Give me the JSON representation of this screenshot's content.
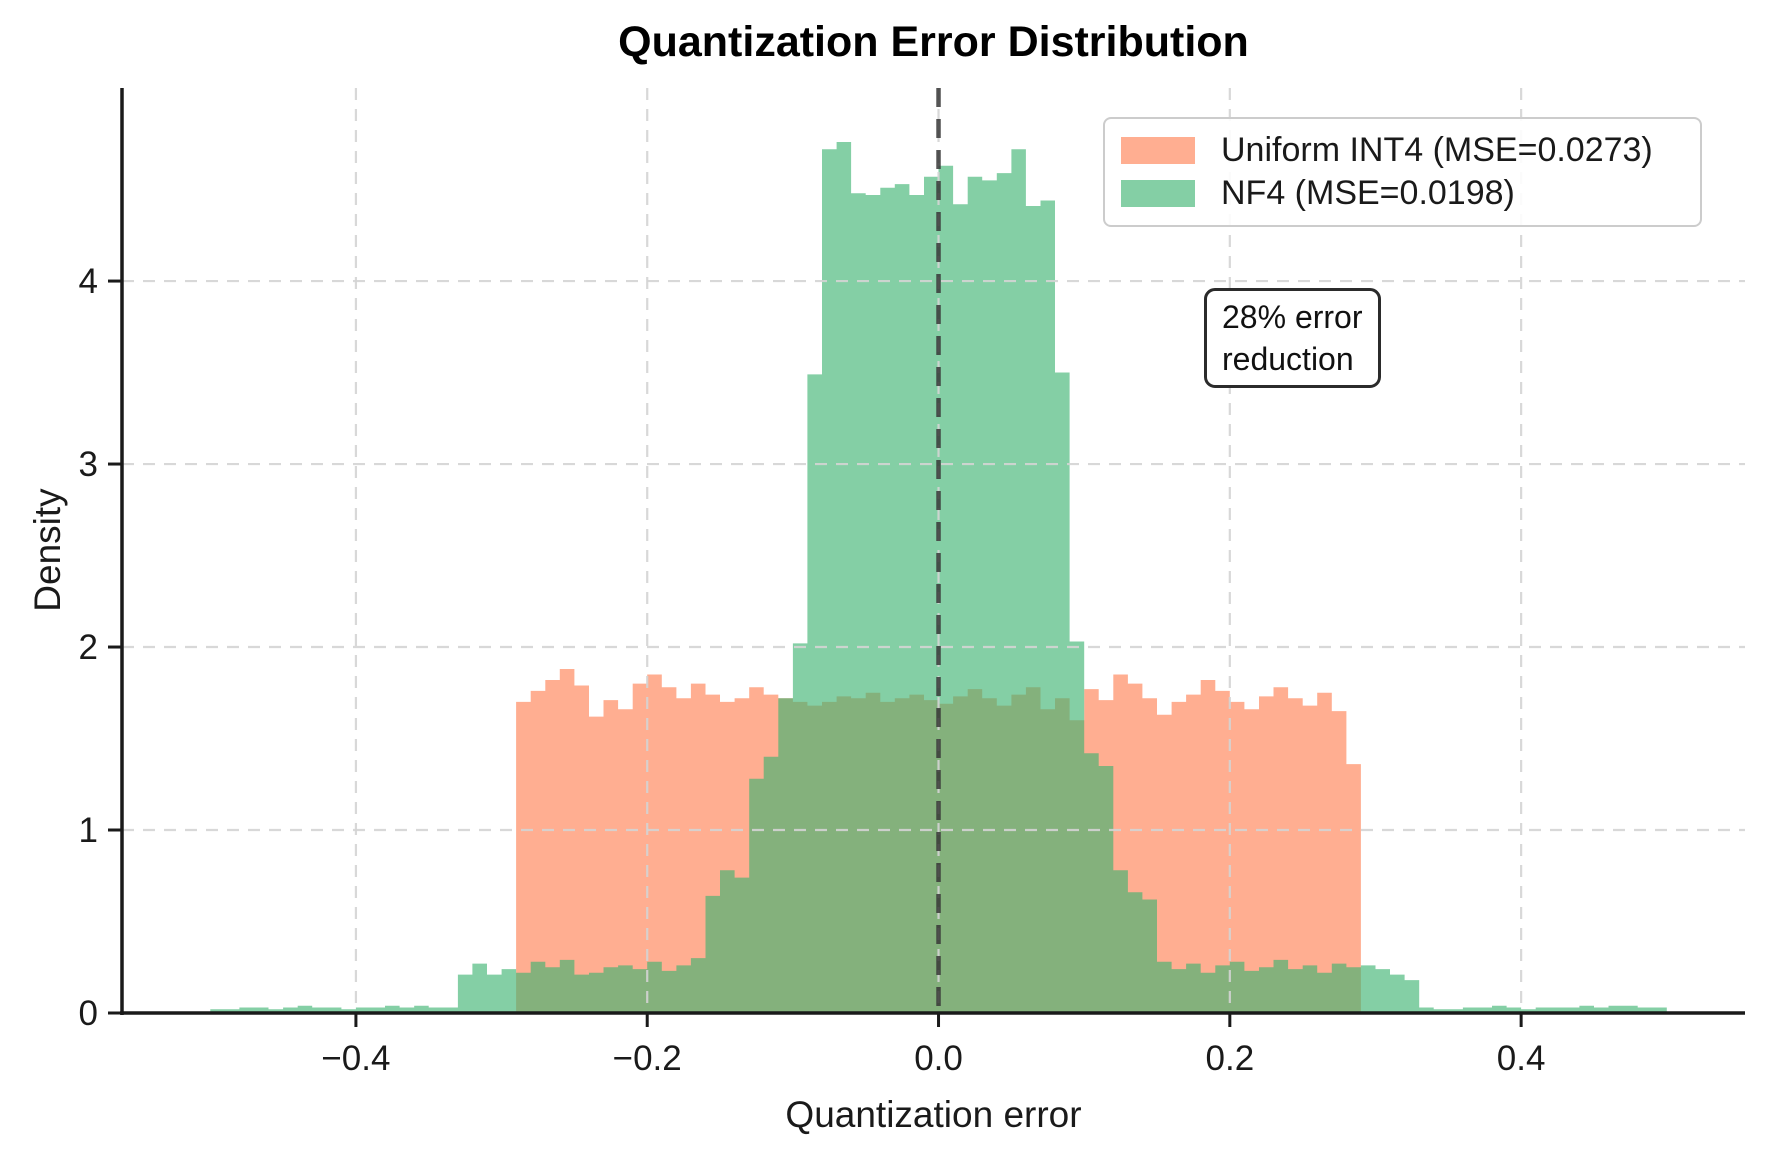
{
  "title": "Quantization Error Distribution",
  "axes": {
    "xlabel": "Quantization error",
    "ylabel": "Density",
    "x_tick_labels": [
      "−0.4",
      "−0.2",
      "0.0",
      "0.2",
      "0.4"
    ],
    "x_tick_values": [
      -0.4,
      -0.2,
      0.0,
      0.2,
      0.4
    ],
    "y_tick_labels": [
      "0",
      "1",
      "2",
      "3",
      "4"
    ],
    "y_tick_values": [
      0,
      1,
      2,
      3,
      4
    ]
  },
  "legend": {
    "position": "upper right",
    "items": [
      {
        "id": "uniform_int4",
        "label": "Uniform INT4 (MSE=0.0273)",
        "color": "rgba(255,127,80,0.63)"
      },
      {
        "id": "nf4",
        "label": "NF4 (MSE=0.0198)",
        "color": "rgba(60,179,113,0.63)"
      }
    ]
  },
  "annotation": {
    "line1": "28% error",
    "line2": "reduction"
  },
  "chart_data": {
    "type": "bar",
    "subtype": "overlapping density histograms",
    "title": "Quantization Error Distribution",
    "xlabel": "Quantization error",
    "ylabel": "Density",
    "xlim": [
      -0.5606,
      0.5537
    ],
    "ylim": [
      0,
      5.055
    ],
    "grid": true,
    "grid_style": "dashed, light gray, drawn above bars",
    "zero_line": {
      "x": 0,
      "style": "dashed",
      "color": "rgba(55,55,55,0.85)"
    },
    "series": [
      {
        "id": "uniform_int4",
        "name": "Uniform INT4 (MSE=0.0273)",
        "fill": "rgb(255,127,80)",
        "opacity": 0.63,
        "bin_start": -0.29,
        "bin_width": 0.01,
        "densities": [
          1.7,
          1.76,
          1.82,
          1.88,
          1.79,
          1.62,
          1.71,
          1.66,
          1.8,
          1.85,
          1.78,
          1.72,
          1.8,
          1.74,
          1.7,
          1.72,
          1.78,
          1.74,
          1.72,
          1.7,
          1.68,
          1.7,
          1.73,
          1.72,
          1.75,
          1.7,
          1.72,
          1.74,
          1.71,
          1.69,
          1.73,
          1.77,
          1.72,
          1.68,
          1.74,
          1.78,
          1.66,
          1.72,
          1.6,
          1.77,
          1.71,
          1.85,
          1.8,
          1.72,
          1.63,
          1.7,
          1.74,
          1.82,
          1.76,
          1.7,
          1.66,
          1.73,
          1.78,
          1.72,
          1.68,
          1.75,
          1.65,
          1.36
        ]
      },
      {
        "id": "nf4",
        "name": "NF4 (MSE=0.0198)",
        "fill": "rgb(60,179,113)",
        "opacity": 0.63,
        "bin_start": -0.5,
        "bin_width": 0.01,
        "densities": [
          0.02,
          0.02,
          0.03,
          0.03,
          0.02,
          0.03,
          0.04,
          0.03,
          0.03,
          0.02,
          0.03,
          0.03,
          0.04,
          0.03,
          0.04,
          0.03,
          0.03,
          0.21,
          0.27,
          0.21,
          0.24,
          0.22,
          0.28,
          0.25,
          0.29,
          0.21,
          0.22,
          0.25,
          0.26,
          0.24,
          0.28,
          0.23,
          0.26,
          0.3,
          0.64,
          0.78,
          0.74,
          1.28,
          1.4,
          1.72,
          2.02,
          3.49,
          4.72,
          4.76,
          4.48,
          4.47,
          4.51,
          4.53,
          4.47,
          4.57,
          4.63,
          4.42,
          4.57,
          4.55,
          4.59,
          4.72,
          4.41,
          4.44,
          3.5,
          2.03,
          1.42,
          1.35,
          0.78,
          0.66,
          0.62,
          0.28,
          0.24,
          0.27,
          0.22,
          0.26,
          0.28,
          0.23,
          0.25,
          0.29,
          0.24,
          0.26,
          0.22,
          0.27,
          0.25,
          0.26,
          0.24,
          0.21,
          0.18,
          0.03,
          0.02,
          0.02,
          0.03,
          0.03,
          0.04,
          0.03,
          0.02,
          0.03,
          0.03,
          0.03,
          0.04,
          0.03,
          0.04,
          0.04,
          0.03,
          0.03
        ]
      }
    ]
  }
}
